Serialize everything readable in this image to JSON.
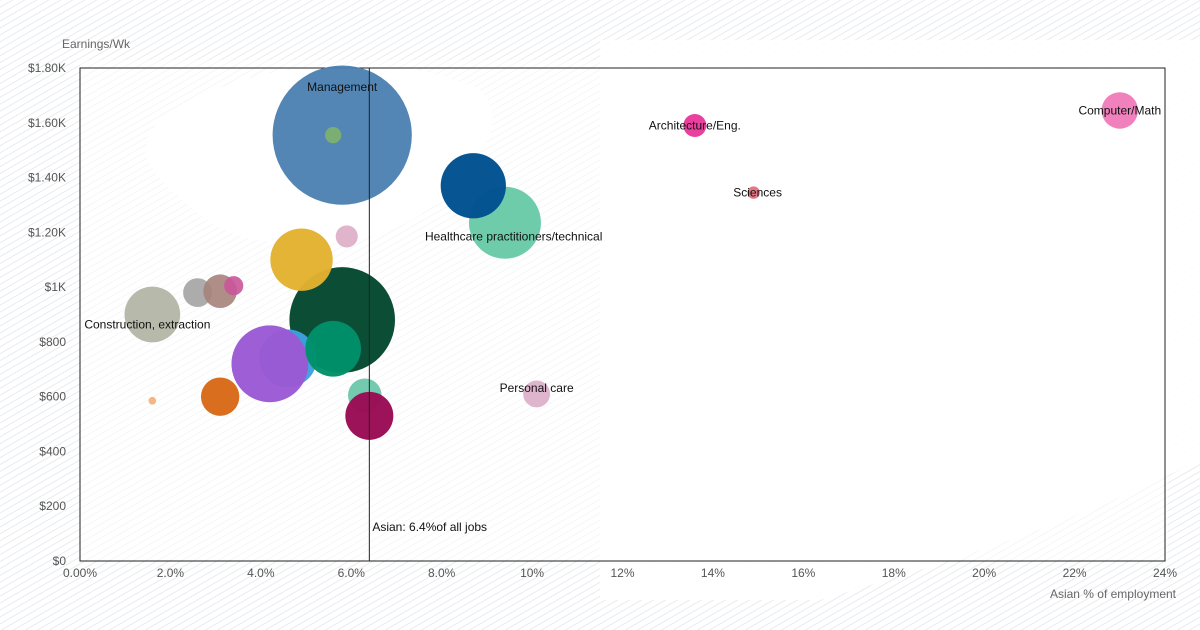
{
  "chart_data": {
    "type": "scatter",
    "subtype": "bubble",
    "ylabel": "Earnings/Wk",
    "xlabel": "Asian % of employment",
    "xlim": [
      0,
      24
    ],
    "ylim": [
      0,
      1800
    ],
    "x_ticks": [
      {
        "value": 0,
        "label": "0.00%"
      },
      {
        "value": 2,
        "label": "2.0%"
      },
      {
        "value": 4,
        "label": "4.0%"
      },
      {
        "value": 6,
        "label": "6.0%"
      },
      {
        "value": 8,
        "label": "8.0%"
      },
      {
        "value": 10,
        "label": "10%"
      },
      {
        "value": 12,
        "label": "12%"
      },
      {
        "value": 14,
        "label": "14%"
      },
      {
        "value": 16,
        "label": "16%"
      },
      {
        "value": 18,
        "label": "18%"
      },
      {
        "value": 20,
        "label": "20%"
      },
      {
        "value": 22,
        "label": "22%"
      },
      {
        "value": 24,
        "label": "24%"
      }
    ],
    "y_ticks": [
      {
        "value": 0,
        "label": "$0"
      },
      {
        "value": 200,
        "label": "$200"
      },
      {
        "value": 400,
        "label": "$400"
      },
      {
        "value": 600,
        "label": "$600"
      },
      {
        "value": 800,
        "label": "$800"
      },
      {
        "value": 1000,
        "label": "$1K"
      },
      {
        "value": 1200,
        "label": "$1.20K"
      },
      {
        "value": 1400,
        "label": "$1.40K"
      },
      {
        "value": 1600,
        "label": "$1.60K"
      },
      {
        "value": 1800,
        "label": "$1.80K"
      }
    ],
    "reference_line": {
      "x": 6.4,
      "label": "Asian: 6.4%of all jobs"
    },
    "points": [
      {
        "name": "Management",
        "label": "Management",
        "x": 5.8,
        "y": 1555,
        "size": 14.5,
        "color": "#4a7fb0",
        "opacity": 0.95
      },
      {
        "name": "Management sub",
        "label": "",
        "x": 5.6,
        "y": 1555,
        "size": 1.7,
        "color": "#7fb26a",
        "opacity": 0.9
      },
      {
        "name": "Computer/Math",
        "label": "Computer/Math",
        "x": 23.0,
        "y": 1645,
        "size": 3.8,
        "color": "#f07ab8",
        "opacity": 0.95
      },
      {
        "name": "Architecture/Eng.",
        "label": "Architecture/Eng.",
        "x": 13.6,
        "y": 1590,
        "size": 2.4,
        "color": "#e8369a",
        "opacity": 0.95
      },
      {
        "name": "Sciences",
        "label": "Sciences",
        "x": 14.9,
        "y": 1345,
        "size": 1.3,
        "color": "#e4707f",
        "opacity": 0.95
      },
      {
        "name": "Healthcare practitioners/technical",
        "label": "Healthcare practitioners/technical",
        "x": 9.4,
        "y": 1235,
        "size": 7.5,
        "color": "#66c9a6",
        "opacity": 0.95
      },
      {
        "name": "Healthcare dark",
        "label": "",
        "x": 8.7,
        "y": 1370,
        "size": 6.8,
        "color": "#00508f",
        "opacity": 0.97
      },
      {
        "name": "Pink small",
        "label": "",
        "x": 5.9,
        "y": 1185,
        "size": 2.3,
        "color": "#deb0c8",
        "opacity": 0.95
      },
      {
        "name": "Dark green",
        "label": "",
        "x": 5.8,
        "y": 880,
        "size": 11.0,
        "color": "#0c4d36",
        "opacity": 1.0
      },
      {
        "name": "Yellow",
        "label": "",
        "x": 4.9,
        "y": 1100,
        "size": 6.5,
        "color": "#e3b22f",
        "opacity": 0.97
      },
      {
        "name": "Light blue",
        "label": "",
        "x": 4.6,
        "y": 740,
        "size": 6.0,
        "color": "#3f9fe0",
        "opacity": 0.97
      },
      {
        "name": "Purple",
        "label": "",
        "x": 4.2,
        "y": 720,
        "size": 8.0,
        "color": "#9b59d4",
        "opacity": 0.97
      },
      {
        "name": "Green mid",
        "label": "",
        "x": 5.6,
        "y": 775,
        "size": 5.8,
        "color": "#00916a",
        "opacity": 0.97
      },
      {
        "name": "Teal light",
        "label": "",
        "x": 6.3,
        "y": 605,
        "size": 3.5,
        "color": "#6ec8ab",
        "opacity": 0.97
      },
      {
        "name": "Maroon",
        "label": "",
        "x": 6.4,
        "y": 530,
        "size": 5.0,
        "color": "#9a0b55",
        "opacity": 0.97
      },
      {
        "name": "Personal care",
        "label": "Personal care",
        "x": 10.1,
        "y": 610,
        "size": 2.8,
        "color": "#dcb1c9",
        "opacity": 0.95
      },
      {
        "name": "Construction, extraction",
        "label": "Construction, extraction",
        "x": 1.6,
        "y": 900,
        "size": 5.8,
        "color": "#b5b8a8",
        "opacity": 0.97
      },
      {
        "name": "Gray",
        "label": "",
        "x": 2.6,
        "y": 980,
        "size": 3.0,
        "color": "#a8a8a8",
        "opacity": 0.95
      },
      {
        "name": "Brown gray",
        "label": "",
        "x": 3.1,
        "y": 985,
        "size": 3.5,
        "color": "#a6827b",
        "opacity": 0.9
      },
      {
        "name": "Magenta small",
        "label": "",
        "x": 3.4,
        "y": 1005,
        "size": 2.0,
        "color": "#c9559a",
        "opacity": 0.9
      },
      {
        "name": "Orange",
        "label": "",
        "x": 3.1,
        "y": 600,
        "size": 4.0,
        "color": "#d86a17",
        "opacity": 0.97
      },
      {
        "name": "Peach",
        "label": "",
        "x": 1.6,
        "y": 585,
        "size": 0.8,
        "color": "#f6b27c",
        "opacity": 0.95
      }
    ]
  }
}
